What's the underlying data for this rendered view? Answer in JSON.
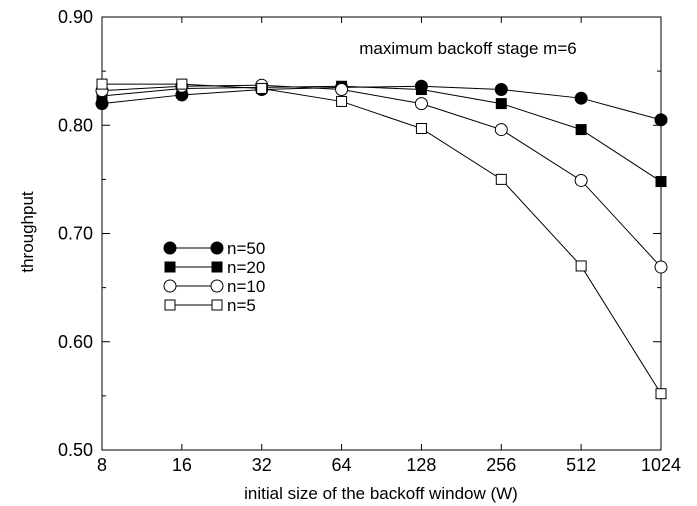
{
  "chart_data": {
    "type": "line",
    "title": "",
    "annotation": "maximum backoff stage m=6",
    "xlabel": "initial size of the backoff window (W)",
    "ylabel": "throughput",
    "x_scale": "log2",
    "categories": [
      "8",
      "16",
      "32",
      "64",
      "128",
      "256",
      "512",
      "1024"
    ],
    "x": [
      8,
      16,
      32,
      64,
      128,
      256,
      512,
      1024
    ],
    "ylim": [
      0.5,
      0.9
    ],
    "yticks": [
      "0.50",
      "0.60",
      "0.70",
      "0.80",
      "0.90"
    ],
    "grid": false,
    "legend_position": "left",
    "series": [
      {
        "name": "n=50",
        "marker": "filled-circle",
        "values": [
          0.82,
          0.828,
          0.833,
          0.835,
          0.836,
          0.833,
          0.825,
          0.805
        ]
      },
      {
        "name": "n=20",
        "marker": "filled-square",
        "values": [
          0.827,
          0.834,
          0.835,
          0.836,
          0.833,
          0.82,
          0.796,
          0.748
        ]
      },
      {
        "name": "n=10",
        "marker": "open-circle",
        "values": [
          0.832,
          0.836,
          0.837,
          0.833,
          0.82,
          0.796,
          0.749,
          0.669
        ]
      },
      {
        "name": "n=5",
        "marker": "open-square",
        "values": [
          0.838,
          0.838,
          0.834,
          0.822,
          0.797,
          0.75,
          0.67,
          0.552
        ]
      }
    ],
    "colors": {
      "line": "#000000",
      "marker_fill": "#000000",
      "marker_open_fill": "#ffffff"
    }
  }
}
